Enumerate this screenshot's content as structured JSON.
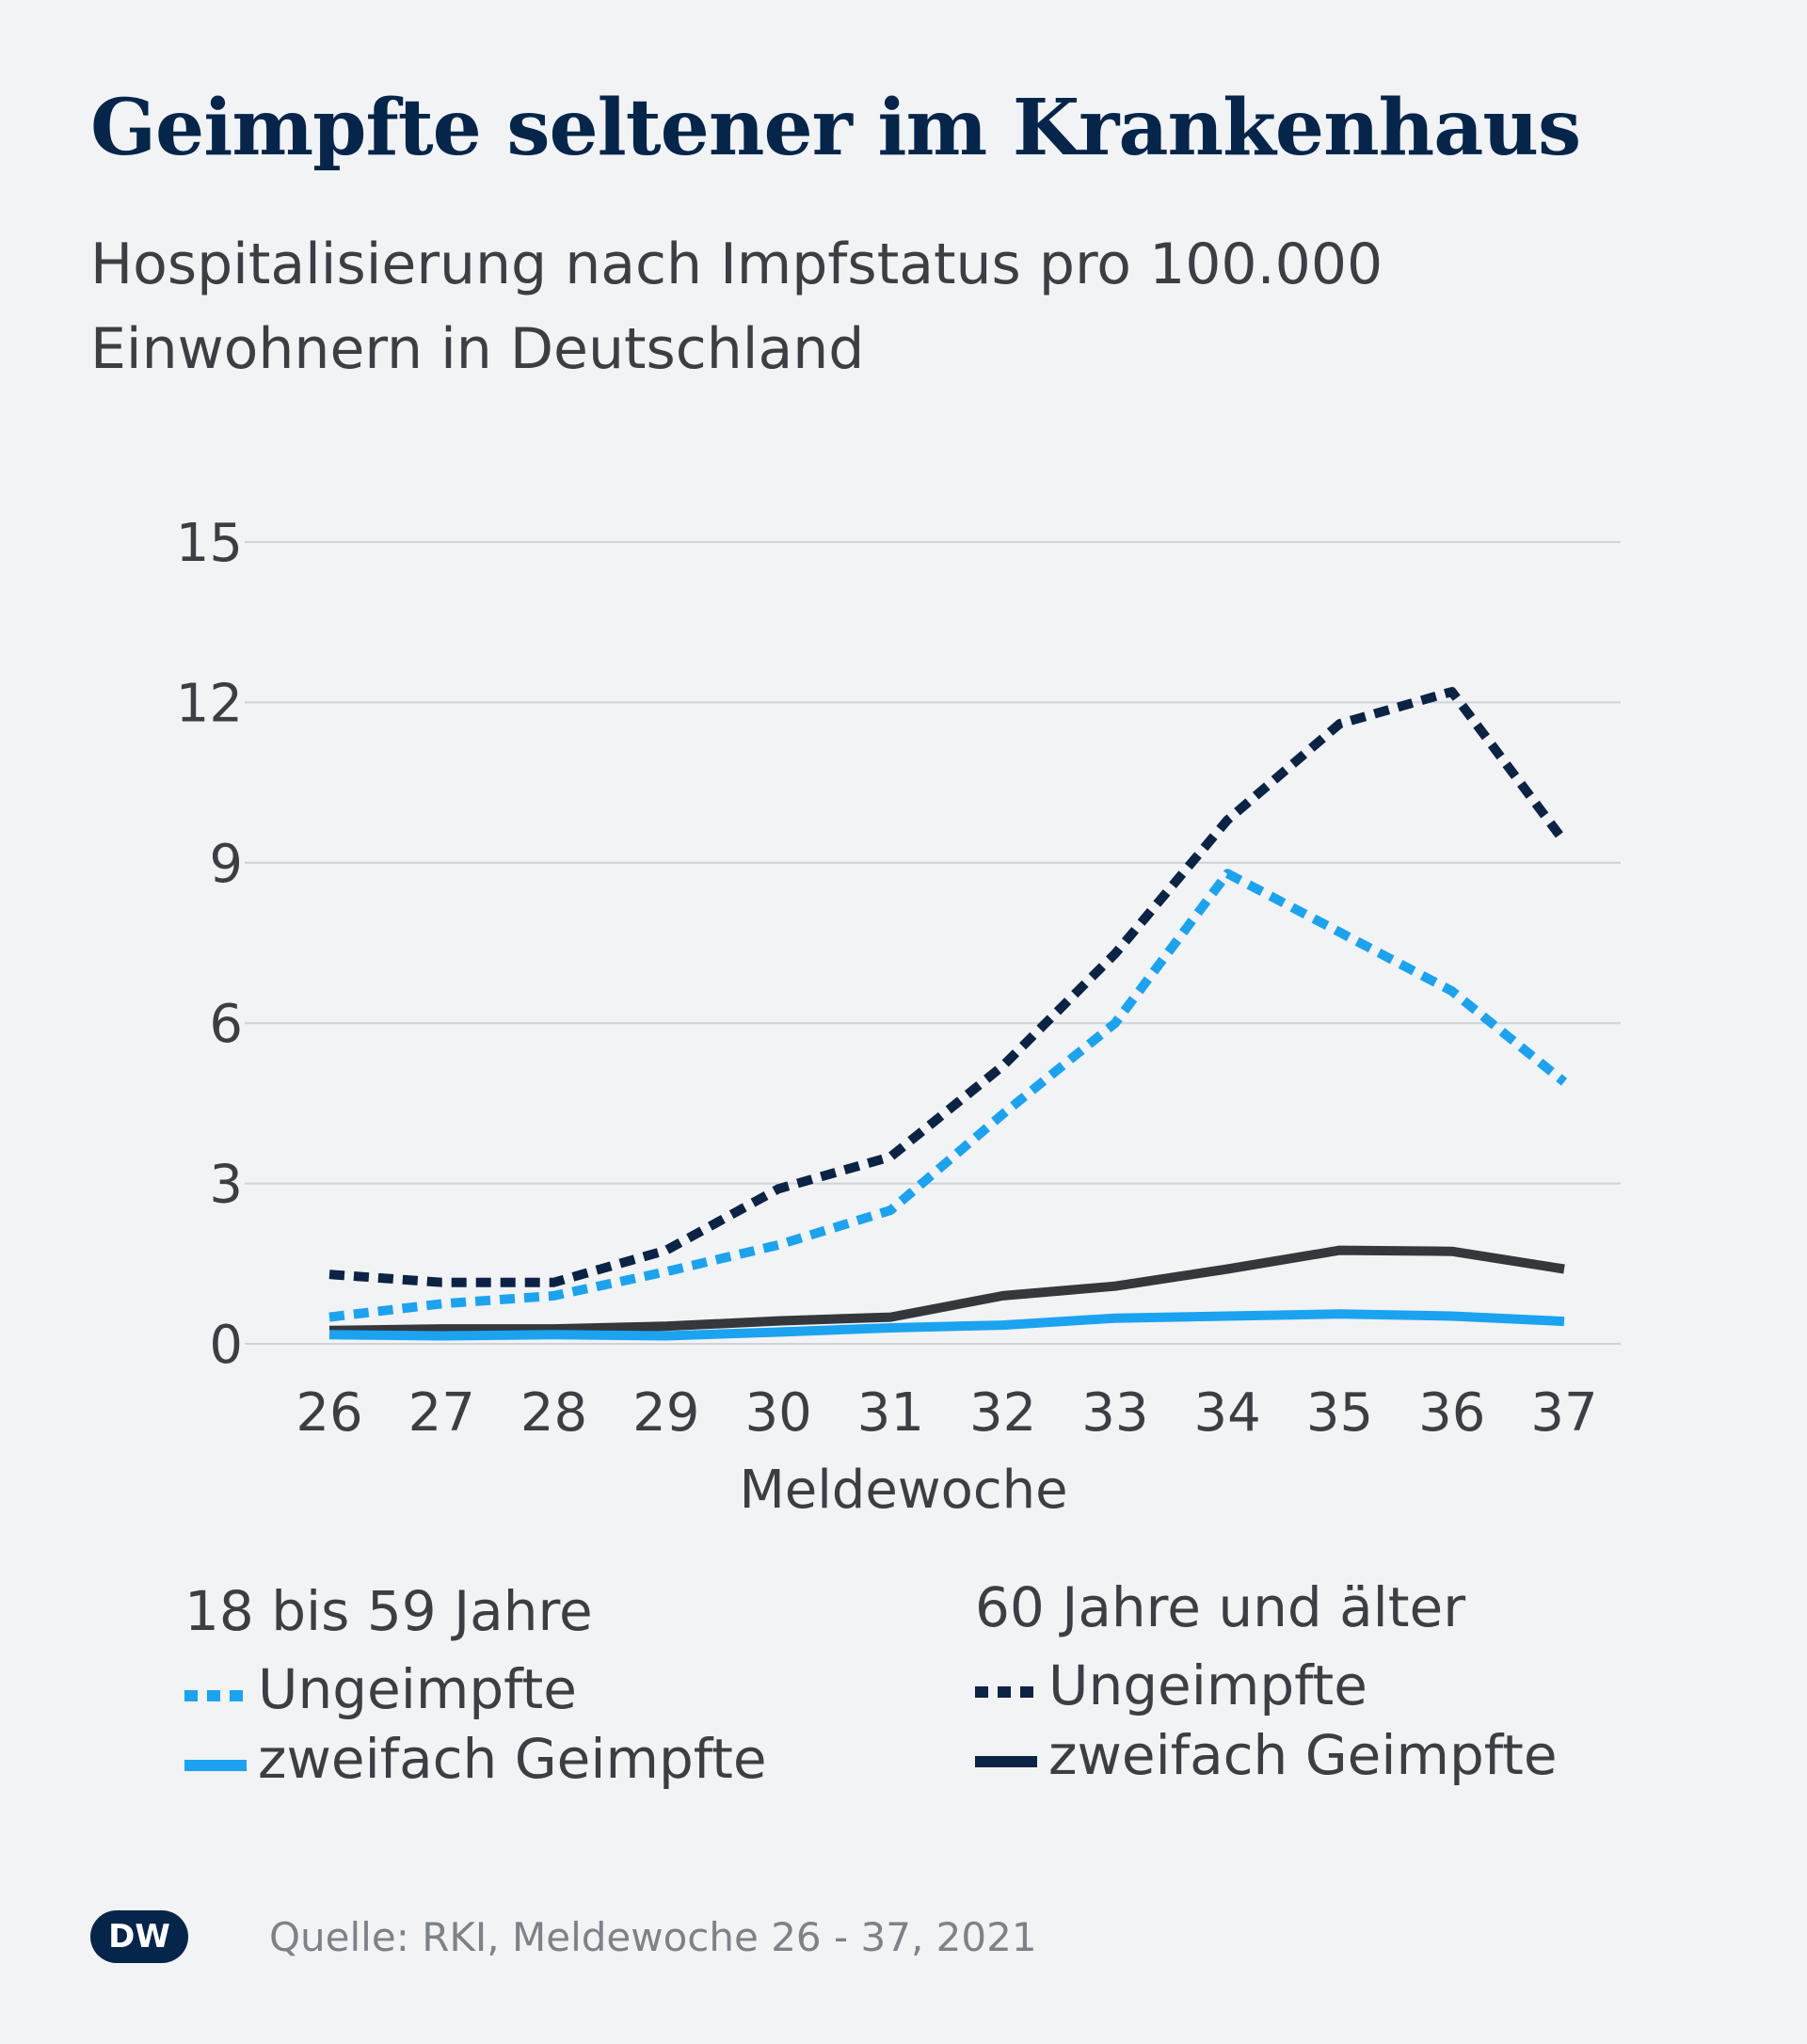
{
  "title": "Geimpfte seltener im Krankenhaus",
  "subtitle": "Hospitalisierung nach Impfstatus pro 100.000 Einwohnern in Deutschland",
  "source": "Quelle: RKI, Meldewoche 26 - 37, 2021",
  "logo_text": "DW",
  "legend": {
    "group1": {
      "title": "18 bis 59 Jahre",
      "items": [
        "Ungeimpfte",
        "zweifach Geimpfte"
      ]
    },
    "group2": {
      "title": "60 Jahre und älter",
      "items": [
        "Ungeimpfte",
        "zweifach Geimpfte"
      ]
    }
  },
  "colors": {
    "light_blue": "#1ba3f0",
    "navy": "#0b2345",
    "gray": "#34383c"
  },
  "chart_data": {
    "type": "line",
    "title": "Geimpfte seltener im Krankenhaus",
    "xlabel": "Meldewoche",
    "ylabel": "",
    "x": [
      26,
      27,
      28,
      29,
      30,
      31,
      32,
      33,
      34,
      35,
      36,
      37
    ],
    "yticks": [
      0,
      3,
      6,
      9,
      12,
      15
    ],
    "ylim": [
      0,
      15
    ],
    "grid": true,
    "legend_position": "bottom",
    "series": [
      {
        "name": "60 Jahre und älter – Ungeimpfte",
        "style": "dashed",
        "color": "#0b2345",
        "values": [
          1.3,
          1.15,
          1.15,
          1.75,
          2.9,
          3.5,
          5.2,
          7.3,
          9.8,
          11.6,
          12.2,
          9.4
        ]
      },
      {
        "name": "18 bis 59 Jahre – Ungeimpfte",
        "style": "dashed",
        "color": "#1ba3f0",
        "values": [
          0.5,
          0.75,
          0.9,
          1.35,
          1.85,
          2.5,
          4.3,
          6.0,
          8.8,
          7.7,
          6.6,
          4.9
        ]
      },
      {
        "name": "60 Jahre und älter – zweifach Geimpfte",
        "style": "solid",
        "color": "#34383c",
        "values": [
          0.25,
          0.28,
          0.28,
          0.33,
          0.43,
          0.5,
          0.9,
          1.08,
          1.4,
          1.75,
          1.73,
          1.4
        ]
      },
      {
        "name": "18 bis 59 Jahre – zweifach Geimpfte",
        "style": "solid",
        "color": "#1ba3f0",
        "values": [
          0.17,
          0.15,
          0.17,
          0.15,
          0.22,
          0.3,
          0.35,
          0.48,
          0.52,
          0.56,
          0.52,
          0.42
        ]
      }
    ]
  }
}
